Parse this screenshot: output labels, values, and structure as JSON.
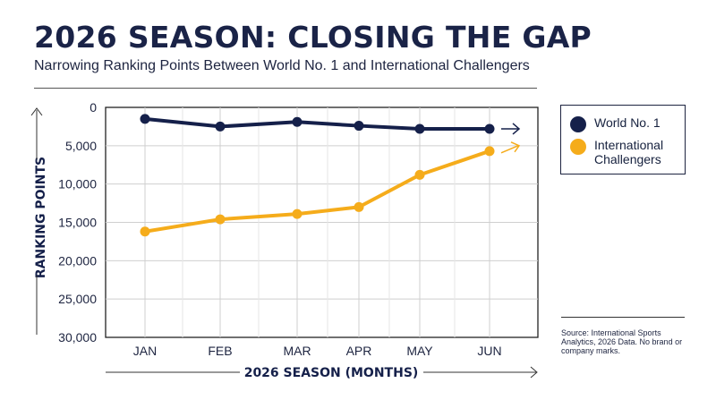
{
  "title": "2026 SEASON: CLOSING THE GAP",
  "subtitle": "Narrowing Ranking Points Between World No. 1 and International Challengers",
  "source": "Source: International Sports Analytics, 2026 Data. No brand or company marks.",
  "colors": {
    "navy": "#15204a",
    "amber": "#f5ac1b"
  },
  "chart_data": {
    "type": "line",
    "xlabel": "2026 SEASON (MONTHS)",
    "ylabel": "RANKING POINTS",
    "categories": [
      "JAN",
      "FEB",
      "MAR",
      "APR",
      "MAY",
      "JUN"
    ],
    "ylim": [
      0,
      30000
    ],
    "y_inverted": true,
    "yticks": [
      "0",
      "5,000",
      "10,000",
      "15,000",
      "20,000",
      "25,000",
      "30,000"
    ],
    "ytick_values": [
      0,
      5000,
      10000,
      15000,
      20000,
      25000,
      30000
    ],
    "grid": true,
    "legend_position": "right",
    "series": [
      {
        "name": "World No. 1",
        "color": "#15204a",
        "values": [
          1500,
          2500,
          1900,
          2400,
          2800,
          2800
        ]
      },
      {
        "name": "International Challengers",
        "color": "#f5ac1b",
        "values": [
          16200,
          14600,
          13900,
          13000,
          8800,
          5700
        ]
      }
    ]
  }
}
